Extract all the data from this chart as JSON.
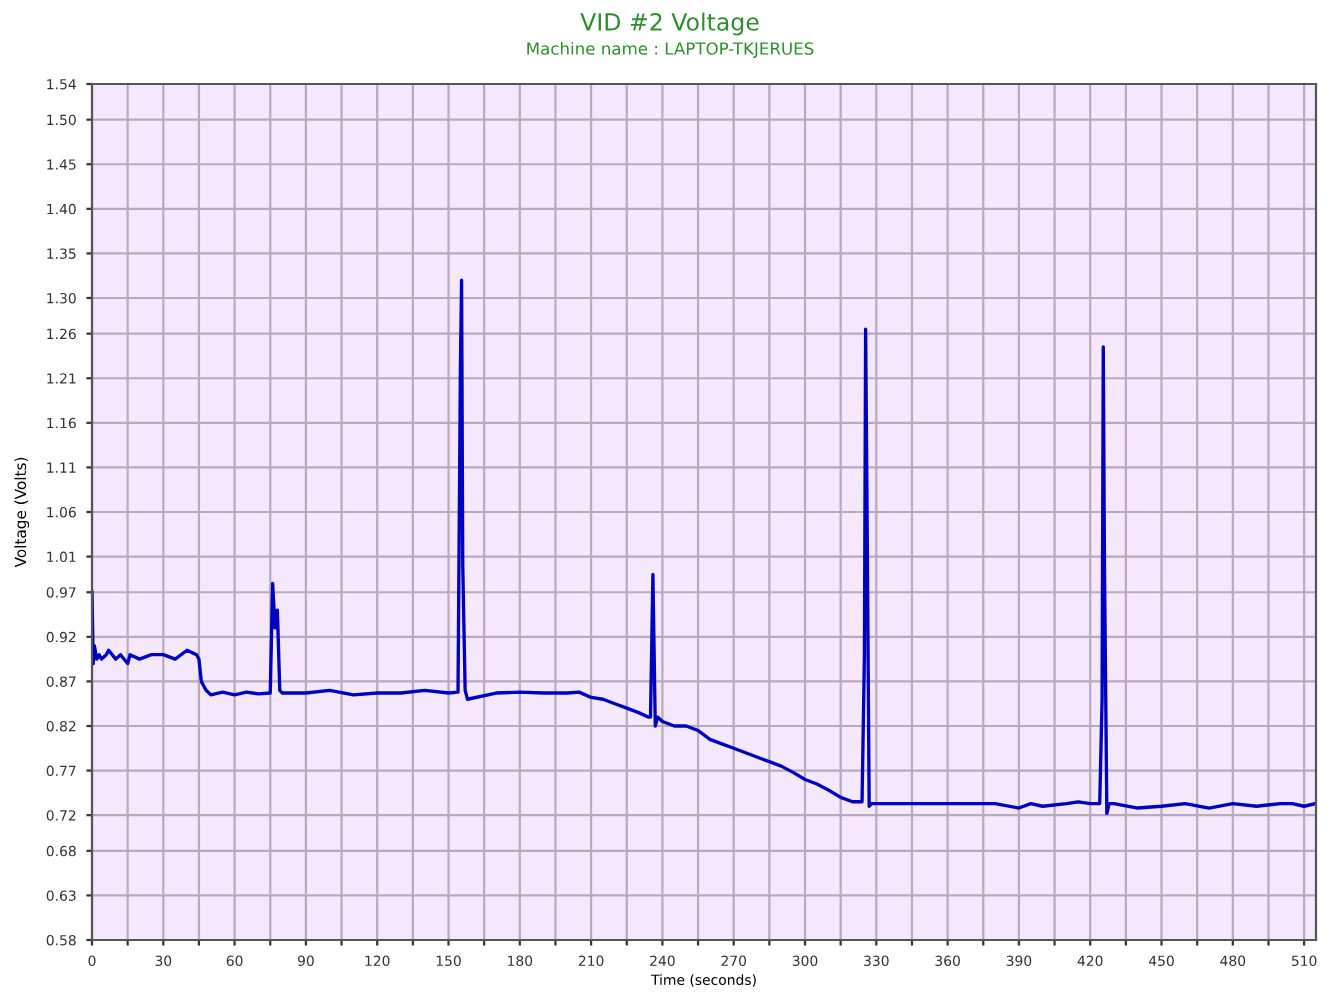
{
  "chart_data": {
    "type": "line",
    "title": "VID #2 Voltage",
    "subtitle": "Machine name : LAPTOP-TKJERUES",
    "xlabel": "Time (seconds)",
    "ylabel": "Voltage (Volts)",
    "xlim": [
      0,
      515
    ],
    "ylim": [
      0.58,
      1.54
    ],
    "xticks": [
      0,
      {
        "value": 15,
        "label": null
      },
      30,
      {
        "value": 45,
        "label": null
      },
      60,
      {
        "value": 75,
        "label": null
      },
      90,
      {
        "value": 105,
        "label": null
      },
      120,
      {
        "value": 135,
        "label": null
      },
      150,
      {
        "value": 165,
        "label": null
      },
      180,
      {
        "value": 195,
        "label": null
      },
      210,
      {
        "value": 225,
        "label": null
      },
      240,
      {
        "value": 255,
        "label": null
      },
      270,
      {
        "value": 285,
        "label": null
      },
      300,
      {
        "value": 315,
        "label": null
      },
      330,
      {
        "value": 345,
        "label": null
      },
      360,
      {
        "value": 375,
        "label": null
      },
      390,
      {
        "value": 405,
        "label": null
      },
      420,
      {
        "value": 435,
        "label": null
      },
      450,
      {
        "value": 465,
        "label": null
      },
      480,
      {
        "value": 495,
        "label": null
      },
      510
    ],
    "yticks": [
      0.58,
      0.63,
      0.68,
      0.72,
      0.77,
      0.82,
      0.87,
      0.92,
      0.97,
      1.01,
      1.06,
      1.11,
      1.16,
      1.21,
      1.26,
      {
        "value": 1.3,
        "label": "1.30"
      },
      1.35,
      {
        "value": 1.4,
        "label": "1.40"
      },
      1.45,
      {
        "value": 1.5,
        "label": "1.50"
      },
      1.54
    ],
    "grid": true,
    "marker": "none",
    "line_style": "solid",
    "series": [
      {
        "color": "#0000c0",
        "x": [
          0,
          0.5,
          1,
          2,
          3,
          4,
          6,
          7,
          10,
          12,
          15,
          16,
          20,
          25,
          30,
          35,
          40,
          44,
          45,
          46,
          48,
          50,
          55,
          60,
          65,
          70,
          75,
          76,
          77,
          78,
          79,
          80,
          90,
          100,
          110,
          120,
          130,
          140,
          150,
          154,
          155,
          155.5,
          156,
          157,
          158,
          170,
          180,
          190,
          200,
          205,
          210,
          215,
          220,
          225,
          230,
          234,
          235,
          236,
          237,
          238,
          240,
          245,
          250,
          255,
          260,
          265,
          270,
          275,
          280,
          285,
          290,
          295,
          300,
          305,
          310,
          315,
          320,
          324,
          325,
          325.5,
          326,
          327,
          328,
          330,
          340,
          350,
          360,
          370,
          380,
          390,
          395,
          400,
          410,
          415,
          420,
          424,
          425,
          425.5,
          426,
          427,
          428,
          430,
          440,
          450,
          460,
          470,
          480,
          490,
          500,
          505,
          510,
          515
        ],
        "values": [
          0.97,
          0.89,
          0.91,
          0.895,
          0.9,
          0.895,
          0.9,
          0.905,
          0.895,
          0.9,
          0.89,
          0.9,
          0.895,
          0.9,
          0.9,
          0.895,
          0.905,
          0.9,
          0.895,
          0.87,
          0.86,
          0.855,
          0.858,
          0.855,
          0.858,
          0.856,
          0.857,
          0.98,
          0.93,
          0.95,
          0.86,
          0.857,
          0.857,
          0.86,
          0.855,
          0.857,
          0.857,
          0.86,
          0.857,
          0.858,
          1.22,
          1.32,
          1.0,
          0.86,
          0.85,
          0.857,
          0.858,
          0.857,
          0.857,
          0.858,
          0.852,
          0.85,
          0.845,
          0.84,
          0.835,
          0.83,
          0.83,
          0.99,
          0.82,
          0.83,
          0.825,
          0.82,
          0.82,
          0.815,
          0.805,
          0.8,
          0.795,
          0.79,
          0.785,
          0.78,
          0.775,
          0.768,
          0.76,
          0.755,
          0.748,
          0.74,
          0.735,
          0.735,
          0.9,
          1.265,
          1.1,
          0.73,
          0.733,
          0.733,
          0.733,
          0.733,
          0.733,
          0.733,
          0.733,
          0.728,
          0.733,
          0.73,
          0.733,
          0.735,
          0.733,
          0.733,
          0.85,
          1.245,
          1.0,
          0.722,
          0.733,
          0.733,
          0.728,
          0.73,
          0.733,
          0.728,
          0.733,
          0.73,
          0.733,
          0.733,
          0.73,
          0.733
        ]
      }
    ]
  }
}
